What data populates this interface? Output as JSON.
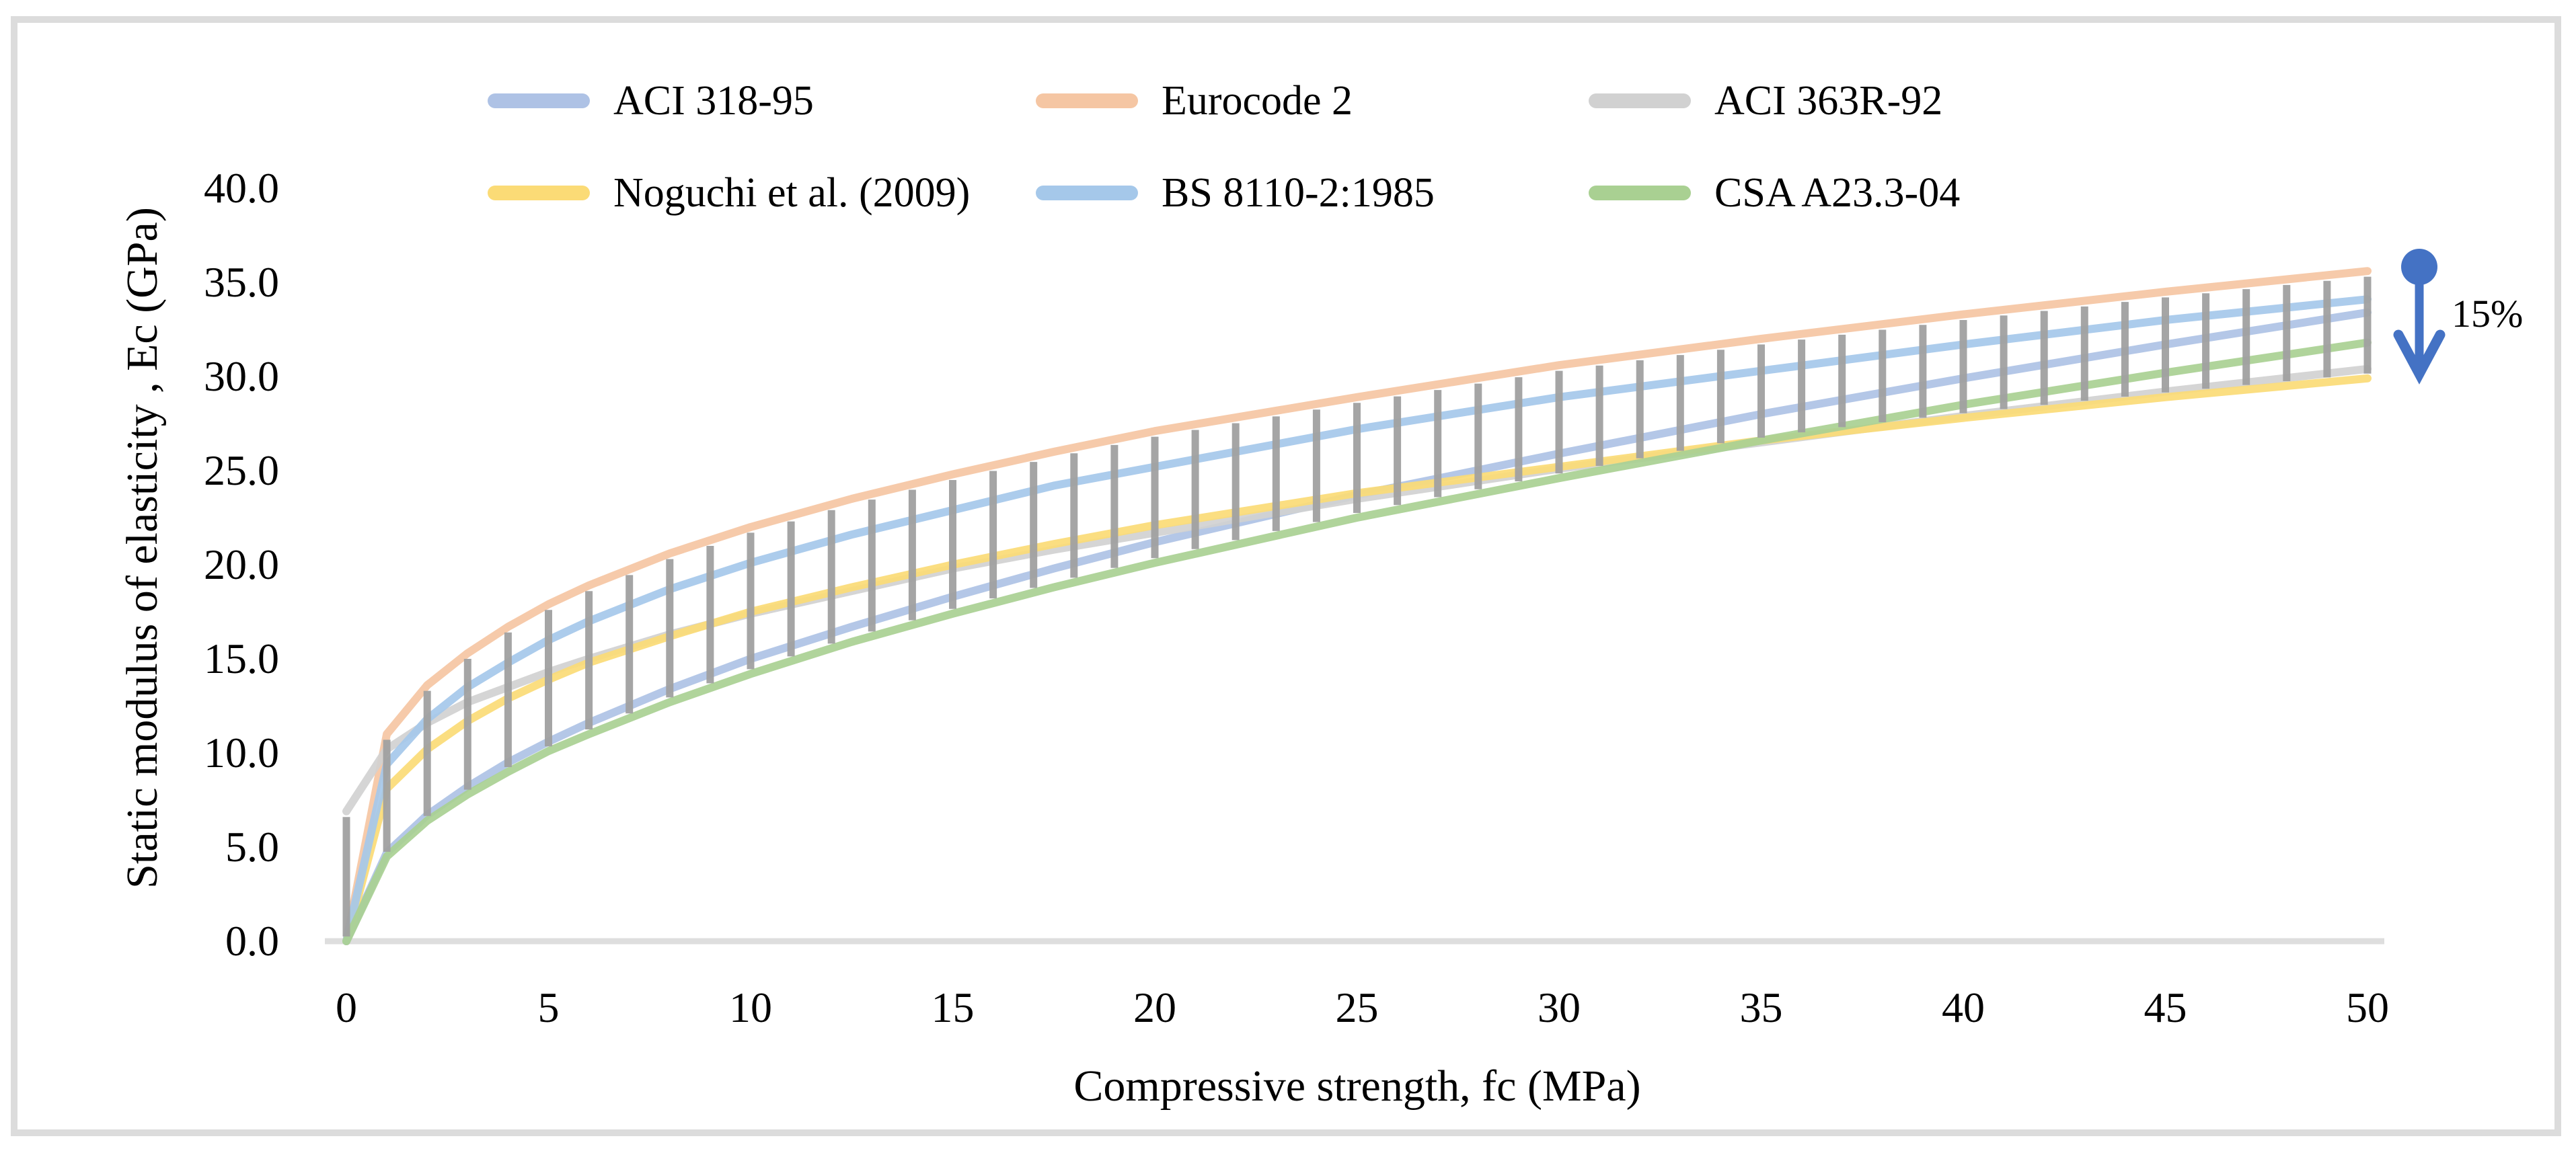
{
  "figure": {
    "background": "#ffffff",
    "border_color": "#DCDCDC"
  },
  "legend": {
    "items": [
      {
        "label": "ACI 318-95",
        "color": "#AEC2E5"
      },
      {
        "label": "Eurocode 2",
        "color": "#F5C6A3"
      },
      {
        "label": "ACI 363R-92",
        "color": "#D1D1D1"
      },
      {
        "label": "Noguchi et al. (2009)",
        "color": "#FBDB76"
      },
      {
        "label": "BS 8110-2:1985",
        "color": "#A5C8EA"
      },
      {
        "label": "CSA A23.3-04",
        "color": "#A9D092"
      }
    ]
  },
  "annotation": {
    "text": "15%",
    "arrow_color": "#4472C4"
  },
  "axes": {
    "x": {
      "title": "Compressive strength, fc (MPa)",
      "tick_labels": [
        "0",
        "5",
        "10",
        "15",
        "20",
        "25",
        "30",
        "35",
        "40",
        "45",
        "50"
      ],
      "axis_line_color": "#DEDEDE"
    },
    "y": {
      "title": "Static modulus of elasticity , Ec (GPa)",
      "tick_labels": [
        "0.0",
        "5.0",
        "10.0",
        "15.0",
        "20.0",
        "25.0",
        "30.0",
        "35.0",
        "40.0"
      ]
    }
  },
  "chart_data": {
    "type": "line",
    "title": "",
    "xlabel": "Compressive strength, fc (MPa)",
    "ylabel": "Static modulus of elasticity , Ec (GPa)",
    "xlim": [
      0,
      50
    ],
    "ylim": [
      0,
      40
    ],
    "grid": false,
    "legend_position": "top",
    "x": [
      0,
      1,
      2,
      3,
      4,
      5,
      6,
      8,
      10,
      12.5,
      15,
      17.5,
      20,
      25,
      30,
      35,
      40,
      45,
      50
    ],
    "series": [
      {
        "name": "ACI 318-95",
        "color": "#AEC2E5",
        "values": [
          0,
          4.7,
          6.7,
          8.2,
          9.5,
          10.6,
          11.6,
          13.4,
          15.0,
          16.7,
          18.3,
          19.8,
          21.2,
          23.7,
          25.9,
          28.0,
          29.9,
          31.7,
          33.4
        ]
      },
      {
        "name": "Eurocode 2",
        "color": "#F5C6A3",
        "values": [
          0,
          11.0,
          13.6,
          15.3,
          16.7,
          17.9,
          18.9,
          20.6,
          22.0,
          23.5,
          24.8,
          26.0,
          27.1,
          28.9,
          30.6,
          32.0,
          33.3,
          34.5,
          35.6
        ]
      },
      {
        "name": "ACI 363R-92",
        "color": "#D1D1D1",
        "values": [
          6.9,
          10.2,
          11.6,
          12.7,
          13.5,
          14.3,
          15.0,
          16.3,
          17.4,
          18.6,
          19.8,
          20.8,
          21.7,
          23.5,
          25.1,
          26.5,
          27.9,
          29.2,
          30.4
        ]
      },
      {
        "name": "Noguchi et al. (2009)",
        "color": "#FBDB76",
        "values": [
          0,
          8.1,
          10.2,
          11.7,
          12.9,
          13.9,
          14.8,
          16.2,
          17.5,
          18.8,
          20.0,
          21.1,
          22.1,
          23.8,
          25.2,
          26.6,
          27.8,
          28.9,
          29.9
        ]
      },
      {
        "name": "BS 8110-2:1985",
        "color": "#A5C8EA",
        "values": [
          0,
          9.4,
          11.8,
          13.5,
          14.8,
          16.0,
          17.0,
          18.7,
          20.1,
          21.6,
          22.9,
          24.2,
          25.2,
          27.2,
          28.9,
          30.3,
          31.7,
          33.0,
          34.1
        ]
      },
      {
        "name": "CSA A23.3-04",
        "color": "#A9D092",
        "values": [
          0,
          4.5,
          6.4,
          7.8,
          9.0,
          10.1,
          11.0,
          12.7,
          14.2,
          15.9,
          17.4,
          18.8,
          20.1,
          22.5,
          24.6,
          26.6,
          28.5,
          30.2,
          31.8
        ]
      }
    ],
    "high_low_lines": {
      "color": "#A1A1A1",
      "x_start": 0,
      "x_end": 50,
      "x_step": 1
    },
    "annotation": {
      "text": "15%",
      "meaning": "gap between upper and lower bound curves at high strength"
    }
  }
}
